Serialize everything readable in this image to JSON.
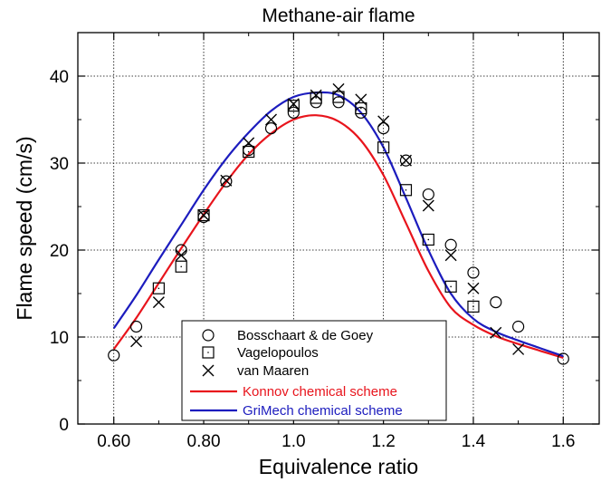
{
  "chart_data": {
    "type": "line",
    "title": "Methane-air flame",
    "xlabel": "Equivalence ratio",
    "ylabel": "Flame speed (cm/s)",
    "xlim": [
      0.52,
      1.68
    ],
    "ylim": [
      0,
      45
    ],
    "xticks": [
      "0.60",
      "0.80",
      "1.0",
      "1.2",
      "1.4",
      "1.6"
    ],
    "xtick_values": [
      0.6,
      0.8,
      1.0,
      1.2,
      1.4,
      1.6
    ],
    "yticks": [
      "0",
      "10",
      "20",
      "30",
      "40"
    ],
    "ytick_values": [
      0,
      10,
      20,
      30,
      40
    ],
    "grid": "dotted, y and x at labeled ticks",
    "legend_position": "bottom-center",
    "series": [
      {
        "name": "Bosschaart & de Goey",
        "marker": "circle",
        "x": [
          0.6,
          0.65,
          0.75,
          0.8,
          0.85,
          0.9,
          0.95,
          1.0,
          1.05,
          1.1,
          1.15,
          1.2,
          1.25,
          1.3,
          1.35,
          1.4,
          1.45,
          1.5,
          1.6
        ],
        "y": [
          7.9,
          11.2,
          20.0,
          23.8,
          27.9,
          31.5,
          34.0,
          35.8,
          37.0,
          37.0,
          35.8,
          34.0,
          30.3,
          26.4,
          20.6,
          17.4,
          14.0,
          11.2,
          7.5
        ]
      },
      {
        "name": "Vagelopoulos",
        "marker": "square",
        "x": [
          0.7,
          0.75,
          0.8,
          0.9,
          1.0,
          1.05,
          1.1,
          1.15,
          1.2,
          1.25,
          1.3,
          1.35,
          1.4
        ],
        "y": [
          15.6,
          18.1,
          24.0,
          31.3,
          36.6,
          37.5,
          37.6,
          36.3,
          31.8,
          26.9,
          21.2,
          15.8,
          13.5
        ]
      },
      {
        "name": "van Maaren",
        "marker": "x",
        "x": [
          0.65,
          0.7,
          0.75,
          0.8,
          0.85,
          0.9,
          0.95,
          1.0,
          1.05,
          1.1,
          1.15,
          1.2,
          1.25,
          1.3,
          1.35,
          1.4,
          1.45,
          1.5
        ],
        "y": [
          9.5,
          14.0,
          19.4,
          24.0,
          28.0,
          32.3,
          35.0,
          36.8,
          37.8,
          38.5,
          37.3,
          34.8,
          30.3,
          25.1,
          19.4,
          15.6,
          10.5,
          8.6
        ]
      },
      {
        "name": "Konnov chemical scheme",
        "marker": "line",
        "color": "#e8141c",
        "x": [
          0.6,
          0.65,
          0.7,
          0.75,
          0.8,
          0.85,
          0.9,
          0.95,
          1.0,
          1.05,
          1.1,
          1.15,
          1.2,
          1.25,
          1.3,
          1.35,
          1.4,
          1.45,
          1.5,
          1.55,
          1.6
        ],
        "y": [
          8.6,
          12.2,
          16.2,
          20.2,
          24.1,
          27.8,
          31.0,
          33.4,
          35.0,
          35.5,
          34.8,
          32.6,
          28.6,
          23.1,
          17.6,
          13.4,
          11.4,
          10.1,
          9.2,
          8.4,
          7.6
        ]
      },
      {
        "name": "GriMech chemical scheme",
        "marker": "line",
        "color": "#1c1cbe",
        "x": [
          0.6,
          0.65,
          0.7,
          0.75,
          0.8,
          0.85,
          0.9,
          0.95,
          1.0,
          1.05,
          1.1,
          1.15,
          1.2,
          1.25,
          1.3,
          1.35,
          1.4,
          1.45,
          1.5,
          1.55,
          1.6
        ],
        "y": [
          11.0,
          14.8,
          18.9,
          22.9,
          26.9,
          30.5,
          33.5,
          36.0,
          37.6,
          38.1,
          37.8,
          35.8,
          31.8,
          26.0,
          20.0,
          15.0,
          12.1,
          10.6,
          9.6,
          8.7,
          7.8
        ]
      }
    ]
  }
}
